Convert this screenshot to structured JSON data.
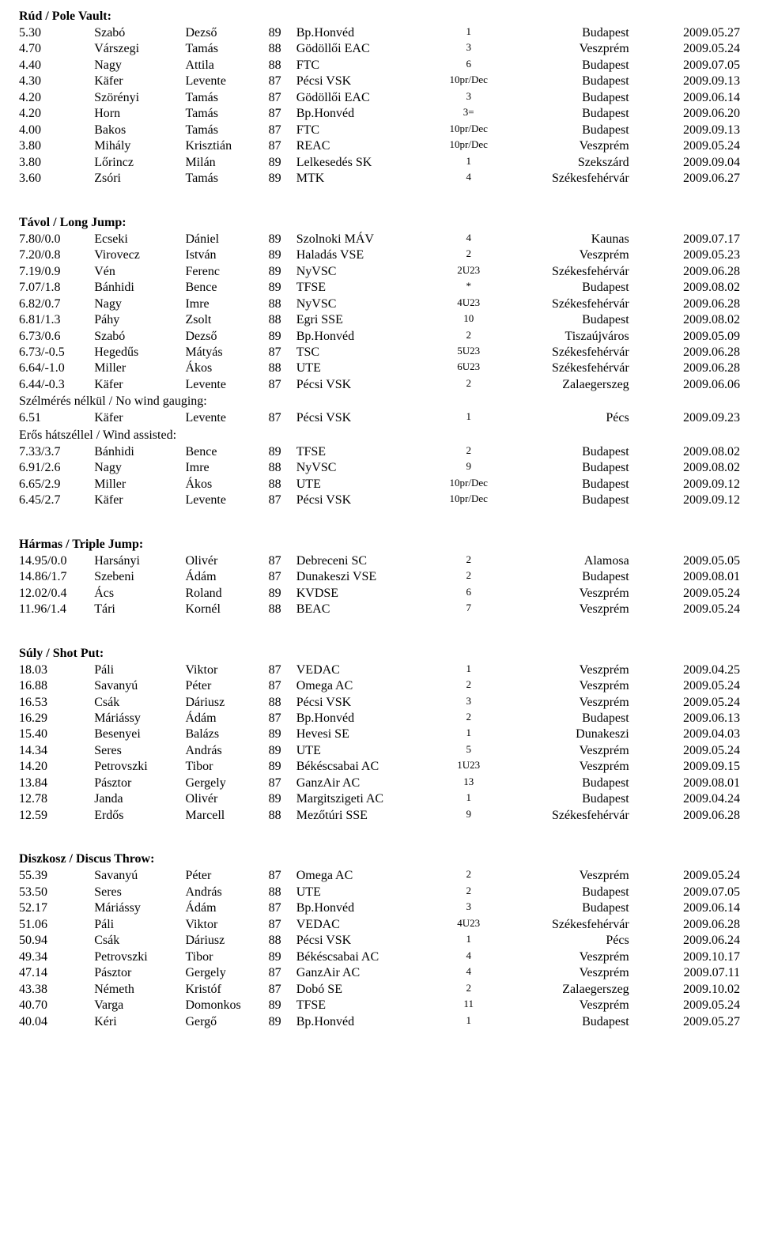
{
  "sections": [
    {
      "title": "Rúd / Pole Vault:",
      "rows": [
        [
          "5.30",
          "Szabó",
          "Dezső",
          "89",
          "Bp.Honvéd",
          "1",
          "Budapest",
          "2009.05.27"
        ],
        [
          "4.70",
          "Várszegi",
          "Tamás",
          "88",
          "Gödöllői EAC",
          "3",
          "Veszprém",
          "2009.05.24"
        ],
        [
          "4.40",
          "Nagy",
          "Attila",
          "88",
          "FTC",
          "6",
          "Budapest",
          "2009.07.05"
        ],
        [
          "4.30",
          "Käfer",
          "Levente",
          "87",
          "Pécsi VSK",
          "10pr/Dec",
          "Budapest",
          "2009.09.13"
        ],
        [
          "4.20",
          "Szörényi",
          "Tamás",
          "87",
          "Gödöllői EAC",
          "3",
          "Budapest",
          "2009.06.14"
        ],
        [
          "4.20",
          "Horn",
          "Tamás",
          "87",
          "Bp.Honvéd",
          "3=",
          "Budapest",
          "2009.06.20"
        ],
        [
          "4.00",
          "Bakos",
          "Tamás",
          "87",
          "FTC",
          "10pr/Dec",
          "Budapest",
          "2009.09.13"
        ],
        [
          "3.80",
          "Mihály",
          "Krisztián",
          "87",
          "REAC",
          "10pr/Dec",
          "Veszprém",
          "2009.05.24"
        ],
        [
          "3.80",
          "Lőrincz",
          "Milán",
          "89",
          "Lelkesedés SK",
          "1",
          "Szekszárd",
          "2009.09.04"
        ],
        [
          "3.60",
          "Zsóri",
          "Tamás",
          "89",
          "MTK",
          "4",
          "Székesfehérvár",
          "2009.06.27"
        ]
      ]
    },
    {
      "title": "Távol / Long Jump:",
      "rows": [
        [
          "7.80/0.0",
          "Ecseki",
          "Dániel",
          "89",
          "Szolnoki MÁV",
          "4",
          "Kaunas",
          "2009.07.17"
        ],
        [
          "7.20/0.8",
          "Virovecz",
          "István",
          "89",
          "Haladás VSE",
          "2",
          "Veszprém",
          "2009.05.23"
        ],
        [
          "7.19/0.9",
          "Vén",
          "Ferenc",
          "89",
          "NyVSC",
          "2U23",
          "Székesfehérvár",
          "2009.06.28"
        ],
        [
          "7.07/1.8",
          "Bánhidi",
          "Bence",
          "89",
          "TFSE",
          "*",
          "Budapest",
          "2009.08.02"
        ],
        [
          "6.82/0.7",
          "Nagy",
          "Imre",
          "88",
          "NyVSC",
          "4U23",
          "Székesfehérvár",
          "2009.06.28"
        ],
        [
          "6.81/1.3",
          "Páhy",
          "Zsolt",
          "88",
          "Egri SSE",
          "10",
          "Budapest",
          "2009.08.02"
        ],
        [
          "6.73/0.6",
          "Szabó",
          "Dezső",
          "89",
          "Bp.Honvéd",
          "2",
          "Tiszaújváros",
          "2009.05.09"
        ],
        [
          "6.73/-0.5",
          "Hegedűs",
          "Mátyás",
          "87",
          "TSC",
          "5U23",
          "Székesfehérvár",
          "2009.06.28"
        ],
        [
          "6.64/-1.0",
          "Miller",
          "Ákos",
          "88",
          "UTE",
          "6U23",
          "Székesfehérvár",
          "2009.06.28"
        ],
        [
          "6.44/-0.3",
          "Käfer",
          "Levente",
          "87",
          "Pécsi VSK",
          "2",
          "Zalaegerszeg",
          "2009.06.06"
        ]
      ],
      "subgroups": [
        {
          "note": "Szélmérés nélkül / No wind gauging:",
          "rows": [
            [
              "6.51",
              "Käfer",
              "Levente",
              "87",
              "Pécsi VSK",
              "1",
              "Pécs",
              "2009.09.23"
            ]
          ]
        },
        {
          "note": "Erős hátszéllel / Wind assisted:",
          "rows": [
            [
              "7.33/3.7",
              "Bánhidi",
              "Bence",
              "89",
              "TFSE",
              "2",
              "Budapest",
              "2009.08.02"
            ],
            [
              "6.91/2.6",
              "Nagy",
              "Imre",
              "88",
              "NyVSC",
              "9",
              "Budapest",
              "2009.08.02"
            ],
            [
              "6.65/2.9",
              "Miller",
              "Ákos",
              "88",
              "UTE",
              "10pr/Dec",
              "Budapest",
              "2009.09.12"
            ],
            [
              "6.45/2.7",
              "Käfer",
              "Levente",
              "87",
              "Pécsi VSK",
              "10pr/Dec",
              "Budapest",
              "2009.09.12"
            ]
          ]
        }
      ]
    },
    {
      "title": "Hármas / Triple Jump:",
      "rows": [
        [
          "14.95/0.0",
          "Harsányi",
          "Olivér",
          "87",
          "Debreceni SC",
          "2",
          "Alamosa",
          "2009.05.05"
        ],
        [
          "14.86/1.7",
          "Szebeni",
          "Ádám",
          "87",
          "Dunakeszi VSE",
          "2",
          "Budapest",
          "2009.08.01"
        ],
        [
          "12.02/0.4",
          "Ács",
          "Roland",
          "89",
          "KVDSE",
          "6",
          "Veszprém",
          "2009.05.24"
        ],
        [
          "11.96/1.4",
          "Tári",
          "Kornél",
          "88",
          "BEAC",
          "7",
          "Veszprém",
          "2009.05.24"
        ]
      ]
    },
    {
      "title": "Súly / Shot Put:",
      "rows": [
        [
          "18.03",
          "Páli",
          "Viktor",
          "87",
          "VEDAC",
          "1",
          "Veszprém",
          "2009.04.25"
        ],
        [
          "16.88",
          "Savanyú",
          "Péter",
          "87",
          "Omega AC",
          "2",
          "Veszprém",
          "2009.05.24"
        ],
        [
          "16.53",
          "Csák",
          "Dáriusz",
          "88",
          "Pécsi VSK",
          "3",
          "Veszprém",
          "2009.05.24"
        ],
        [
          "16.29",
          "Máriássy",
          "Ádám",
          "87",
          "Bp.Honvéd",
          "2",
          "Budapest",
          "2009.06.13"
        ],
        [
          "15.40",
          "Besenyei",
          "Balázs",
          "89",
          "Hevesi SE",
          "1",
          "Dunakeszi",
          "2009.04.03"
        ],
        [
          "14.34",
          "Seres",
          "András",
          "89",
          "UTE",
          "5",
          "Veszprém",
          "2009.05.24"
        ],
        [
          "14.20",
          "Petrovszki",
          "Tibor",
          "89",
          "Békéscsabai AC",
          "1U23",
          "Veszprém",
          "2009.09.15"
        ],
        [
          "13.84",
          "Pásztor",
          "Gergely",
          "87",
          "GanzAir AC",
          "13",
          "Budapest",
          "2009.08.01"
        ],
        [
          "12.78",
          "Janda",
          "Olivér",
          "89",
          "Margitszigeti AC",
          "1",
          "Budapest",
          "2009.04.24"
        ],
        [
          "12.59",
          "Erdős",
          "Marcell",
          "88",
          "Mezőtúri SSE",
          "9",
          "Székesfehérvár",
          "2009.06.28"
        ]
      ]
    },
    {
      "title": "Diszkosz / Discus Throw:",
      "rows": [
        [
          "55.39",
          "Savanyú",
          "Péter",
          "87",
          "Omega AC",
          "2",
          "Veszprém",
          "2009.05.24"
        ],
        [
          "53.50",
          "Seres",
          "András",
          "88",
          "UTE",
          "2",
          "Budapest",
          "2009.07.05"
        ],
        [
          "52.17",
          "Máriássy",
          "Ádám",
          "87",
          "Bp.Honvéd",
          "3",
          "Budapest",
          "2009.06.14"
        ],
        [
          "51.06",
          "Páli",
          "Viktor",
          "87",
          "VEDAC",
          "4U23",
          "Székesfehérvár",
          "2009.06.28"
        ],
        [
          "50.94",
          "Csák",
          "Dáriusz",
          "88",
          "Pécsi VSK",
          "1",
          "Pécs",
          "2009.06.24"
        ],
        [
          "49.34",
          "Petrovszki",
          "Tibor",
          "89",
          "Békéscsabai AC",
          "4",
          "Veszprém",
          "2009.10.17"
        ],
        [
          "47.14",
          "Pásztor",
          "Gergely",
          "87",
          "GanzAir AC",
          "4",
          "Veszprém",
          "2009.07.11"
        ],
        [
          "43.38",
          "Németh",
          "Kristóf",
          "87",
          "Dobó SE",
          "2",
          "Zalaegerszeg",
          "2009.10.02"
        ],
        [
          "40.70",
          "Varga",
          "Domonkos",
          "89",
          "TFSE",
          "11",
          "Veszprém",
          "2009.05.24"
        ],
        [
          "40.04",
          "Kéri",
          "Gergő",
          "89",
          "Bp.Honvéd",
          "1",
          "Budapest",
          "2009.05.27"
        ]
      ]
    }
  ]
}
